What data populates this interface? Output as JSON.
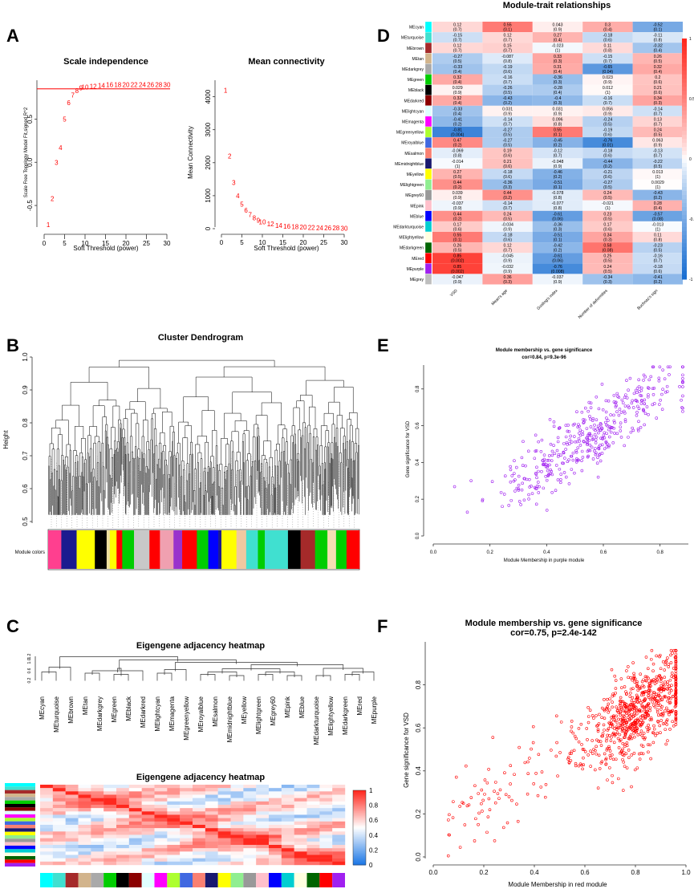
{
  "panels": {
    "a": "A",
    "b": "B",
    "c": "C",
    "d": "D",
    "e": "E",
    "f": "F"
  },
  "chart_data": [
    {
      "id": "A1",
      "type": "scatter",
      "title": "Scale independence",
      "xlabel": "Soft Threshold (power)",
      "ylabel": "Scale Free Topology Model Fit,signed R^2",
      "xlim": [
        0,
        30
      ],
      "ylim": [
        -0.75,
        0.95
      ],
      "xticks": [
        "0",
        "5",
        "10",
        "15",
        "20",
        "25",
        "30"
      ],
      "yticks": [
        "-0.5",
        "0.0",
        "0.5"
      ],
      "hline": 0.85,
      "x": [
        1,
        2,
        3,
        4,
        5,
        6,
        7,
        8,
        9,
        10,
        12,
        14,
        16,
        18,
        20,
        22,
        24,
        26,
        28,
        30
      ],
      "y": [
        -0.72,
        -0.42,
        0.0,
        0.17,
        0.5,
        0.69,
        0.78,
        0.83,
        0.86,
        0.87,
        0.88,
        0.89,
        0.9,
        0.9,
        0.9,
        0.9,
        0.9,
        0.9,
        0.9,
        0.9
      ],
      "labels": [
        "1",
        "2",
        "3",
        "4",
        "5",
        "6",
        "7",
        "8",
        "9",
        "10",
        "12",
        "14",
        "16",
        "18",
        "20",
        "22",
        "24",
        "26",
        "28",
        "30"
      ]
    },
    {
      "id": "A2",
      "type": "scatter",
      "title": "Mean connectivity",
      "xlabel": "Soft Threshold (power)",
      "ylabel": "Mean Connectivity",
      "xlim": [
        0,
        30
      ],
      "ylim": [
        0,
        4500
      ],
      "xticks": [
        "0",
        "5",
        "10",
        "15",
        "20",
        "25",
        "30"
      ],
      "yticks": [
        "0",
        "1000",
        "2000",
        "3000",
        "4000"
      ],
      "x": [
        1,
        2,
        3,
        4,
        5,
        6,
        7,
        8,
        9,
        10,
        12,
        14,
        16,
        18,
        20,
        22,
        24,
        26,
        28,
        30
      ],
      "y": [
        4200,
        2200,
        1400,
        1000,
        740,
        560,
        430,
        330,
        260,
        210,
        140,
        100,
        75,
        58,
        46,
        37,
        30,
        25,
        21,
        18
      ],
      "labels": [
        "1",
        "2",
        "3",
        "4",
        "5",
        "6",
        "7",
        "8",
        "9",
        "10",
        "12",
        "14",
        "16",
        "18",
        "20",
        "22",
        "24",
        "26",
        "28",
        "30"
      ]
    },
    {
      "id": "B",
      "type": "dendrogram",
      "title": "Cluster Dendrogram",
      "ylabel": "Height",
      "ylim": [
        0.5,
        1.0
      ],
      "yticks": [
        "0.5",
        "0.6",
        "0.7",
        "0.8",
        "0.9",
        "1.0"
      ],
      "color_bar_label": "Module colors",
      "module_color_sequence": [
        "#ff3f8f",
        "#1b1b8f",
        "#ffff00",
        "#ffff00",
        "#000000",
        "#f0e0a0",
        "#ffff00",
        "#ff0000",
        "#00cd00",
        "#c8c8c8",
        "#ff0000",
        "#f0a0b0",
        "#9932cc",
        "#ff0000",
        "#00cd00",
        "#0000ff",
        "#1b1b8f",
        "#ffff00",
        "#f0c8a0",
        "#40e0d0",
        "#00cd00",
        "#40e0d0",
        "#40e0d0",
        "#000000",
        "#a52a2a",
        "#00cd00",
        "#f5deb3",
        "#00cd00",
        "#ff0000"
      ]
    },
    {
      "id": "C1",
      "type": "dendrogram",
      "title": "Eigengene adjacency heatmap",
      "yticks": [
        "0.2",
        "0.6",
        "1.0",
        "1.2"
      ],
      "leaves": [
        "MEcyan",
        "MEturquoise",
        "MEbrown",
        "MEtan",
        "MEdarkgrey",
        "MEgreen",
        "MEblack",
        "MEdarkred",
        "MElightcyan",
        "MEmagenta",
        "MEgreenyellow",
        "MEroyalblue",
        "MEsalmon",
        "MEmidnightblue",
        "MEyellow",
        "MElightgreen",
        "MEgrey60",
        "MEpink",
        "MEblue",
        "MEdarkturquoise",
        "MElightyellow",
        "MEdarkgreen",
        "MEred",
        "MEpurple"
      ]
    },
    {
      "id": "C2",
      "type": "heatmap",
      "title": "Eigengene adjacency heatmap",
      "colorbar_ticks": [
        "0",
        "0.2",
        "0.4",
        "0.6",
        "0.8",
        "1"
      ],
      "colorbar_range": [
        0,
        1
      ],
      "module_colors": [
        "#00ffff",
        "#40e0d0",
        "#a52a2a",
        "#d2b48c",
        "#a9a9a9",
        "#00cd00",
        "#000000",
        "#8b0000",
        "#e0ffff",
        "#ff00ff",
        "#adff2f",
        "#4169e1",
        "#fa8072",
        "#191970",
        "#ffff00",
        "#90ee90",
        "#999999",
        "#ffc0cb",
        "#0000ff",
        "#00ced1",
        "#ffffe0",
        "#006400",
        "#ff0000",
        "#a020f0"
      ]
    },
    {
      "id": "D",
      "type": "heatmap",
      "title": "Module-trait relationships",
      "columns": [
        "VSD",
        "Mean's age",
        "Gosling's index",
        "Number of deformities",
        "Buchnaz's sign"
      ],
      "rows": [
        "MEcyan",
        "MEturquoise",
        "MEbrown",
        "MEtan",
        "MEdarkgrey",
        "MEgreen",
        "MEblack",
        "MEdarkred",
        "MElightcyan",
        "MEmagenta",
        "MEgreenyellow",
        "MEroyalblue",
        "MEsalmon",
        "MEmidnightblue",
        "MEyellow",
        "MElightgreen",
        "MEgrey60",
        "MEpink",
        "MEblue",
        "MEdarkturquoise",
        "MElightyellow",
        "MEdarkgreen",
        "MEred",
        "MEpurple",
        "MEgrey"
      ],
      "row_colors": [
        "#00ffff",
        "#40e0d0",
        "#a52a2a",
        "#d2b48c",
        "#a9a9a9",
        "#00cd00",
        "#000000",
        "#8b0000",
        "#e0ffff",
        "#ff00ff",
        "#adff2f",
        "#4169e1",
        "#fa8072",
        "#191970",
        "#ffff00",
        "#90ee90",
        "#999999",
        "#ffc0cb",
        "#0000ff",
        "#00ced1",
        "#ffffe0",
        "#006400",
        "#ff0000",
        "#a020f0",
        "#bebebe"
      ],
      "cor": [
        [
          0.12,
          0.55,
          0.043,
          0.3,
          -0.52
        ],
        [
          -0.15,
          0.12,
          0.27,
          -0.18,
          -0.11
        ],
        [
          0.12,
          0.15,
          -0.023,
          0.11,
          -0.32
        ],
        [
          -0.27,
          -0.087,
          0.33,
          -0.15,
          0.26
        ],
        [
          -0.33,
          -0.19,
          0.31,
          -0.65,
          0.32
        ],
        [
          0.32,
          -0.16,
          -0.36,
          0.023,
          0.2
        ],
        [
          0.029,
          -0.26,
          -0.28,
          0.012,
          0.21
        ],
        [
          0.32,
          -0.43,
          -0.4,
          -0.16,
          0.34
        ],
        [
          -0.33,
          0.031,
          0.031,
          0.056,
          -0.14
        ],
        [
          -0.41,
          -0.14,
          0.096,
          -0.24,
          0.13
        ],
        [
          -0.81,
          -0.27,
          0.55,
          -0.19,
          0.24
        ],
        [
          0.47,
          -0.27,
          -0.45,
          -0.76,
          0.063
        ],
        [
          -0.069,
          0.19,
          -0.12,
          -0.18,
          -0.13
        ],
        [
          -0.014,
          0.21,
          -0.048,
          -0.44,
          -0.22
        ],
        [
          0.27,
          -0.18,
          -0.46,
          -0.21,
          0.013
        ],
        [
          0.44,
          -0.36,
          -0.51,
          -0.27,
          0.0029
        ],
        [
          0.039,
          0.44,
          -0.078,
          0.24,
          -0.43
        ],
        [
          -0.037,
          -0.14,
          -0.077,
          -0.021,
          0.28
        ],
        [
          0.44,
          0.24,
          -0.61,
          0.23,
          -0.57
        ],
        [
          0.17,
          -0.034,
          -0.36,
          0.17,
          -0.013
        ],
        [
          0.55,
          -0.18,
          -0.51,
          0.34,
          0.11
        ],
        [
          0.26,
          0.12,
          -0.42,
          0.58,
          -0.23
        ],
        [
          0.85,
          -0.045,
          -0.61,
          0.25,
          -0.16
        ],
        [
          0.85,
          -0.032,
          -0.76,
          0.24,
          -0.18
        ],
        [
          -0.047,
          0.36,
          -0.037,
          -0.34,
          -0.41
        ]
      ],
      "p": [
        [
          "(0.7)",
          "(0.1)",
          "(0.9)",
          "(0.4)",
          "(0.1)"
        ],
        [
          "(0.7)",
          "(0.7)",
          "(0.4)",
          "(0.6)",
          "(0.8)"
        ],
        [
          "(0.7)",
          "(0.7)",
          "(1)",
          "(0.8)",
          "(0.4)"
        ],
        [
          "(0.5)",
          "(0.8)",
          "(0.3)",
          "(0.7)",
          "(0.5)"
        ],
        [
          "(0.4)",
          "(0.6)",
          "(0.4)",
          "(0.04)",
          "(0.4)"
        ],
        [
          "(0.4)",
          "(0.7)",
          "(0.3)",
          "(0.9)",
          "(0.6)"
        ],
        [
          "(0.9)",
          "(0.5)",
          "(0.4)",
          "(1)",
          "(0.6)"
        ],
        [
          "(0.4)",
          "(0.2)",
          "(0.3)",
          "(0.7)",
          "(0.3)"
        ],
        [
          "(0.4)",
          "(0.9)",
          "(0.9)",
          "(0.9)",
          "(0.7)"
        ],
        [
          "(0.2)",
          "(0.7)",
          "(0.8)",
          "(0.5)",
          "(0.7)"
        ],
        [
          "(0.004)",
          "(0.5)",
          "(0.1)",
          "(0.6)",
          "(0.5)"
        ],
        [
          "(0.2)",
          "(0.5)",
          "(0.2)",
          "(0.01)",
          "(0.9)"
        ],
        [
          "(0.8)",
          "(0.6)",
          "(0.7)",
          "(0.6)",
          "(0.7)"
        ],
        [
          "(1)",
          "(0.6)",
          "(0.9)",
          "(0.2)",
          "(0.5)"
        ],
        [
          "(0.5)",
          "(0.6)",
          "(0.2)",
          "(0.6)",
          "(1)"
        ],
        [
          "(0.2)",
          "(0.3)",
          "(0.1)",
          "(0.5)",
          "(1)"
        ],
        [
          "(0.9)",
          "(0.2)",
          "(0.8)",
          "(0.5)",
          "(0.2)"
        ],
        [
          "(0.9)",
          "(0.7)",
          "(0.8)",
          "(1)",
          "(0.4)"
        ],
        [
          "(0.2)",
          "(0.5)",
          "(0.06)",
          "(0.5)",
          "(0.08)"
        ],
        [
          "(0.6)",
          "(0.9)",
          "(0.3)",
          "(0.6)",
          "(1)"
        ],
        [
          "(0.1)",
          "(0.6)",
          "(0.1)",
          "(0.3)",
          "(0.8)"
        ],
        [
          "(0.5)",
          "(0.7)",
          "(0.2)",
          "(0.08)",
          "(0.5)"
        ],
        [
          "(0.002)",
          "(0.9)",
          "(0.06)",
          "(0.5)",
          "(0.7)"
        ],
        [
          "(0.002)",
          "(0.9)",
          "(0.008)",
          "(0.5)",
          "(0.6)"
        ],
        [
          "(0.9)",
          "(0.3)",
          "(0.9)",
          "(0.3)",
          "(0.2)"
        ]
      ],
      "colorbar_ticks": [
        "1",
        "0.5",
        "0",
        "-0.5",
        "-1"
      ],
      "colorbar_range": [
        -1,
        1
      ]
    },
    {
      "id": "E",
      "type": "scatter",
      "title": "Module membership vs. gene significance",
      "subtitle": "cor=0.84, p=9.3e-96",
      "xlabel": "Module Membership in purple module",
      "ylabel": "Gene significance for VSD",
      "xlim": [
        0,
        0.9
      ],
      "ylim": [
        0,
        0.93
      ],
      "xticks": [
        "0.0",
        "0.2",
        "0.4",
        "0.6",
        "0.8"
      ],
      "yticks": [
        "0.0",
        "0.2",
        "0.4",
        "0.6",
        "0.8"
      ],
      "point_color": "#a020f0",
      "n_points": 420,
      "cor": 0.84
    },
    {
      "id": "F",
      "type": "scatter",
      "title": "Module membership vs. gene significance",
      "subtitle": "cor=0.75, p=2.4e-142",
      "xlabel": "Module Membership in red module",
      "ylabel": "Gene significance for VSD",
      "xlim": [
        0,
        1.0
      ],
      "ylim": [
        0,
        1.0
      ],
      "xticks": [
        "0.0",
        "0.2",
        "0.4",
        "0.6",
        "0.8",
        "1.0"
      ],
      "yticks": [
        "0.0",
        "0.2",
        "0.4",
        "0.6",
        "0.8"
      ],
      "point_color": "#ff0000",
      "n_points": 800,
      "cor": 0.75
    }
  ]
}
